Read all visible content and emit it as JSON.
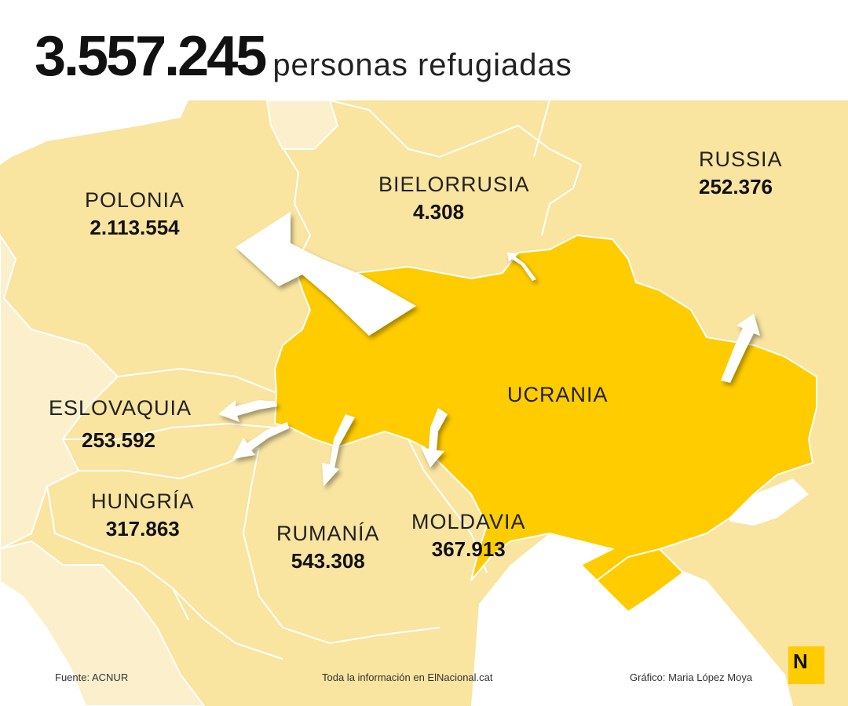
{
  "headline": {
    "number": "3.557.245",
    "text": "personas refugiadas"
  },
  "countries": [
    {
      "key": "polonia",
      "name": "POLONIA",
      "value": "2.113.554"
    },
    {
      "key": "bielorrusia",
      "name": "BIELORRUSIA",
      "value": "4.308"
    },
    {
      "key": "russia",
      "name": "RUSSIA",
      "value": "252.376"
    },
    {
      "key": "eslovaquia",
      "name": "ESLOVAQUIA",
      "value": "253.592"
    },
    {
      "key": "hungria",
      "name": "HUNGRÍA",
      "value": "317.863"
    },
    {
      "key": "rumania",
      "name": "RUMANÍA",
      "value": "543.308"
    },
    {
      "key": "moldavia",
      "name": "MOLDAVIA",
      "value": "367.913"
    }
  ],
  "origin": {
    "name": "UCRANIA"
  },
  "footer": {
    "source": "Fuente: ACNUR",
    "info": "Toda la información en ElNacional.cat",
    "credit": "Gráfico: Maria López Moya"
  },
  "logo": {
    "letter": "N"
  },
  "colors": {
    "ukraine": "#ffcc00",
    "neighbors": "#f9e4a0",
    "far_land": "#fbefcc",
    "sea": "#ffffff",
    "borders": "#ffffff",
    "arrows": "#ffffff"
  }
}
